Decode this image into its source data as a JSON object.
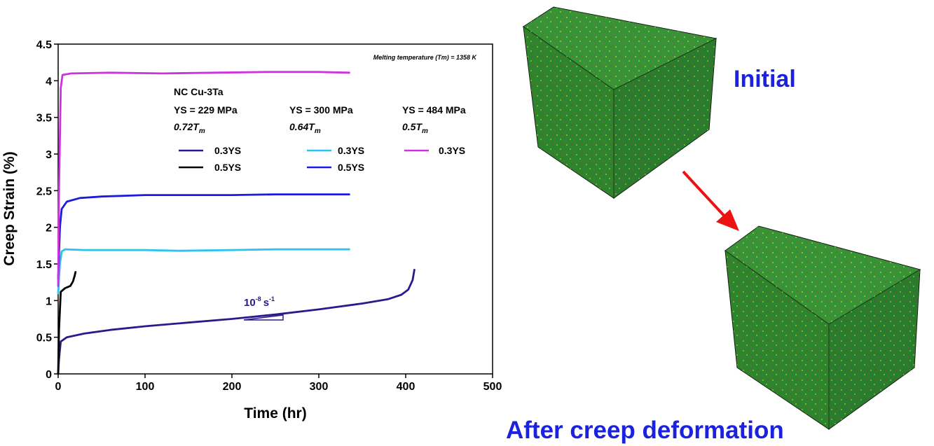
{
  "chart_data": {
    "type": "line",
    "xlabel": "Time (hr)",
    "ylabel": "Creep Strain (%)",
    "xlim": [
      0,
      500
    ],
    "ylim": [
      0,
      4.5
    ],
    "x_ticks": [
      "0",
      "100",
      "200",
      "300",
      "400",
      "500"
    ],
    "y_ticks": [
      "0",
      "0.5",
      "1",
      "1.5",
      "2",
      "2.5",
      "3",
      "3.5",
      "4",
      "4.5"
    ],
    "grid": false,
    "note": "Melting temperature (Tm) = 1358 K",
    "legend_title": "NC Cu-3Ta",
    "groups": [
      {
        "ys": "YS = 229 MPa",
        "temp": "0.72T",
        "temp_sub": "m"
      },
      {
        "ys": "YS = 300 MPa",
        "temp": "0.64T",
        "temp_sub": "m"
      },
      {
        "ys": "YS = 484 MPa",
        "temp": "0.5T",
        "temp_sub": "m"
      }
    ],
    "rate_label_base": "10",
    "rate_label_exp": "-8",
    "rate_label_unit": "s",
    "rate_label_unit_exp": "-1",
    "series": [
      {
        "name": "0.3YS",
        "color": "#2a1a8c",
        "points": [
          [
            0,
            0
          ],
          [
            1,
            0.2
          ],
          [
            3,
            0.44
          ],
          [
            10,
            0.5
          ],
          [
            30,
            0.55
          ],
          [
            60,
            0.6
          ],
          [
            100,
            0.65
          ],
          [
            150,
            0.7
          ],
          [
            200,
            0.75
          ],
          [
            250,
            0.81
          ],
          [
            300,
            0.88
          ],
          [
            350,
            0.96
          ],
          [
            380,
            1.02
          ],
          [
            395,
            1.08
          ],
          [
            403,
            1.15
          ],
          [
            408,
            1.28
          ],
          [
            410,
            1.42
          ]
        ]
      },
      {
        "name": "0.5YS",
        "color": "#000000",
        "points": [
          [
            0,
            0
          ],
          [
            1,
            0.6
          ],
          [
            3,
            1.12
          ],
          [
            8,
            1.17
          ],
          [
            14,
            1.2
          ],
          [
            17,
            1.26
          ],
          [
            19,
            1.34
          ],
          [
            20,
            1.39
          ]
        ]
      },
      {
        "name": "0.3YS",
        "color": "#29c3ee",
        "points": [
          [
            0,
            1.1
          ],
          [
            2,
            1.5
          ],
          [
            4,
            1.67
          ],
          [
            8,
            1.7
          ],
          [
            30,
            1.69
          ],
          [
            100,
            1.69
          ],
          [
            140,
            1.68
          ],
          [
            200,
            1.69
          ],
          [
            250,
            1.7
          ],
          [
            300,
            1.7
          ],
          [
            335,
            1.7
          ]
        ]
      },
      {
        "name": "0.5YS",
        "color": "#1a1ae0",
        "points": [
          [
            0,
            1.3
          ],
          [
            2,
            2.0
          ],
          [
            4,
            2.25
          ],
          [
            10,
            2.35
          ],
          [
            25,
            2.4
          ],
          [
            50,
            2.42
          ],
          [
            100,
            2.44
          ],
          [
            150,
            2.44
          ],
          [
            200,
            2.44
          ],
          [
            250,
            2.45
          ],
          [
            300,
            2.45
          ],
          [
            335,
            2.45
          ]
        ]
      },
      {
        "name": "0.3YS",
        "color": "#cc33dd",
        "points": [
          [
            0,
            1.2
          ],
          [
            1,
            2.5
          ],
          [
            3,
            3.9
          ],
          [
            5,
            4.08
          ],
          [
            15,
            4.1
          ],
          [
            60,
            4.11
          ],
          [
            120,
            4.1
          ],
          [
            180,
            4.11
          ],
          [
            240,
            4.12
          ],
          [
            300,
            4.12
          ],
          [
            335,
            4.11
          ]
        ]
      }
    ]
  },
  "labels": {
    "initial": "Initial",
    "after": "After creep deformation"
  }
}
